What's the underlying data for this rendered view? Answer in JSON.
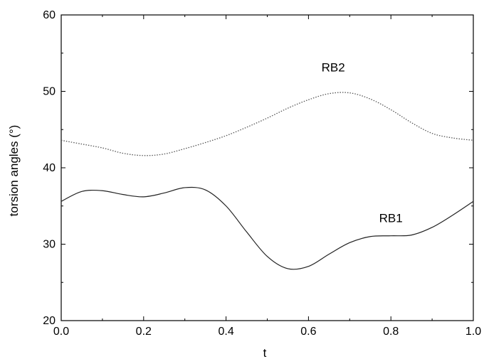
{
  "chart_data": {
    "type": "line",
    "title": "",
    "xlabel": "t",
    "ylabel": "torsion angles (°)",
    "xlim": [
      0.0,
      1.0
    ],
    "ylim": [
      20,
      60
    ],
    "xticks": [
      0.0,
      0.2,
      0.4,
      0.6,
      0.8,
      1.0
    ],
    "xtick_labels": [
      "0.0",
      "0.2",
      "0.4",
      "0.6",
      "0.8",
      "1.0"
    ],
    "yticks": [
      20,
      30,
      40,
      50,
      60
    ],
    "ytick_labels": [
      "20",
      "30",
      "40",
      "50",
      "60"
    ],
    "grid": false,
    "legend": "none",
    "series": [
      {
        "name": "RB2",
        "style": "dotted",
        "color": "#555555",
        "label_at": [
          0.66,
          52.6
        ],
        "x": [
          0.0,
          0.05,
          0.1,
          0.15,
          0.2,
          0.25,
          0.3,
          0.35,
          0.4,
          0.45,
          0.5,
          0.55,
          0.6,
          0.65,
          0.7,
          0.75,
          0.8,
          0.85,
          0.9,
          0.95,
          1.0
        ],
        "values": [
          43.6,
          43.1,
          42.6,
          41.9,
          41.6,
          41.8,
          42.5,
          43.3,
          44.2,
          45.3,
          46.5,
          47.8,
          48.9,
          49.7,
          49.8,
          49.0,
          47.6,
          45.9,
          44.5,
          43.9,
          43.6
        ]
      },
      {
        "name": "RB1",
        "style": "solid",
        "color": "#222222",
        "label_at": [
          0.8,
          32.9
        ],
        "x": [
          0.0,
          0.05,
          0.1,
          0.15,
          0.2,
          0.25,
          0.3,
          0.35,
          0.4,
          0.45,
          0.5,
          0.55,
          0.6,
          0.65,
          0.7,
          0.75,
          0.8,
          0.85,
          0.9,
          0.95,
          1.0
        ],
        "values": [
          35.6,
          36.9,
          37.0,
          36.5,
          36.2,
          36.7,
          37.4,
          37.1,
          35.0,
          31.6,
          28.4,
          26.8,
          27.1,
          28.7,
          30.2,
          31.0,
          31.1,
          31.2,
          32.2,
          33.8,
          35.6
        ]
      }
    ]
  }
}
